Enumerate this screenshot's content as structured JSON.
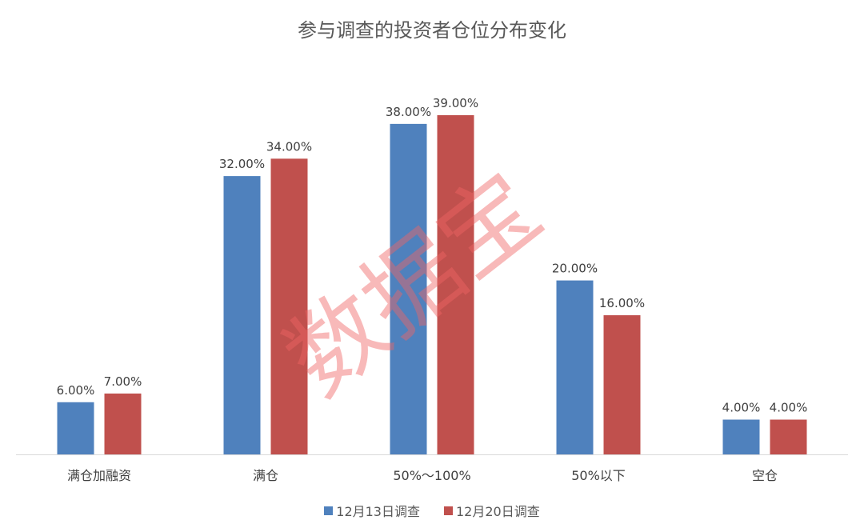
{
  "chart_data": {
    "type": "bar",
    "title": "参与调查的投资者仓位分布变化",
    "categories": [
      "满仓加融资",
      "满仓",
      "50%～100%",
      "50%以下",
      "空仓"
    ],
    "series": [
      {
        "name": "12月13日调查",
        "color": "#4F81BD",
        "values": [
          6,
          32,
          38,
          20,
          4
        ],
        "labels": [
          "6.00%",
          "32.00%",
          "38.00%",
          "20.00%",
          "4.00%"
        ]
      },
      {
        "name": "12月20日调查",
        "color": "#C0504D",
        "values": [
          7,
          34,
          39,
          16,
          4
        ],
        "labels": [
          "7.00%",
          "34.00%",
          "39.00%",
          "16.00%",
          "4.00%"
        ]
      }
    ],
    "ylim": [
      0,
      39
    ],
    "grid": false,
    "legend": "bottom",
    "watermark": "数据宝"
  }
}
